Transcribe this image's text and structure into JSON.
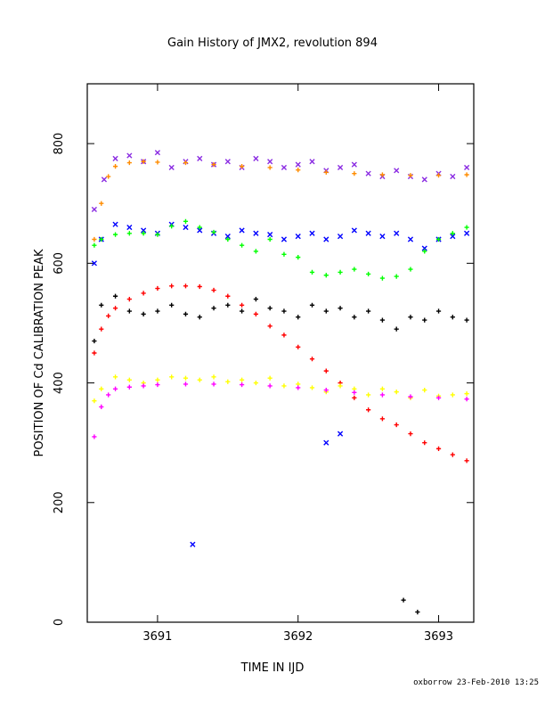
{
  "chart_data": {
    "type": "scatter",
    "title": "Gain History of JMX2, revolution 894",
    "xlabel": "TIME IN IJD",
    "ylabel": "POSITION OF Cd CALIBRATION PEAK",
    "xlim": [
      3690.5,
      3693.25
    ],
    "ylim": [
      0,
      900
    ],
    "x_ticks": [
      3691,
      3692,
      3693
    ],
    "y_ticks": [
      0,
      200,
      400,
      600,
      800
    ],
    "grid": false,
    "footer": "oxborrow 23-Feb-2010 13:25",
    "series": [
      {
        "color": "#8a2be2",
        "marker": "x",
        "x": [
          3690.55,
          3690.62,
          3690.7,
          3690.8,
          3690.9,
          3691.0,
          3691.1,
          3691.2,
          3691.3,
          3691.4,
          3691.5,
          3691.6,
          3691.7,
          3691.8,
          3691.9,
          3692.0,
          3692.1,
          3692.2,
          3692.3,
          3692.4,
          3692.5,
          3692.6,
          3692.7,
          3692.8,
          3692.9,
          3693.0,
          3693.1,
          3693.2
        ],
        "y": [
          690,
          740,
          775,
          780,
          770,
          785,
          760,
          770,
          775,
          765,
          770,
          760,
          775,
          770,
          760,
          765,
          770,
          755,
          760,
          765,
          750,
          745,
          755,
          745,
          740,
          750,
          745,
          760
        ]
      },
      {
        "color": "#ff8c00",
        "marker": "+",
        "x": [
          3690.55,
          3690.6,
          3690.65,
          3690.7,
          3690.8,
          3690.9,
          3691.0,
          3691.2,
          3691.4,
          3691.6,
          3691.8,
          3692.0,
          3692.2,
          3692.4,
          3692.6,
          3692.8,
          3693.0,
          3693.2
        ],
        "y": [
          640,
          700,
          745,
          762,
          768,
          770,
          769,
          768,
          765,
          762,
          760,
          756,
          752,
          750,
          748,
          747,
          747,
          748
        ]
      },
      {
        "color": "#0000ff",
        "marker": "x",
        "x": [
          3690.55,
          3690.6,
          3690.7,
          3690.8,
          3690.9,
          3691.0,
          3691.1,
          3691.2,
          3691.3,
          3691.4,
          3691.5,
          3691.6,
          3691.7,
          3691.8,
          3691.9,
          3692.0,
          3692.1,
          3692.2,
          3692.3,
          3692.4,
          3692.5,
          3692.6,
          3692.7,
          3692.8,
          3692.9,
          3693.0,
          3693.1,
          3693.2,
          3691.25,
          3692.2,
          3692.3
        ],
        "y": [
          600,
          640,
          665,
          660,
          655,
          650,
          665,
          660,
          655,
          650,
          645,
          655,
          650,
          648,
          640,
          645,
          650,
          640,
          645,
          655,
          650,
          645,
          650,
          640,
          625,
          640,
          645,
          650,
          130,
          300,
          315
        ]
      },
      {
        "color": "#00ff00",
        "marker": "+",
        "x": [
          3690.55,
          3690.6,
          3690.7,
          3690.8,
          3690.9,
          3691.0,
          3691.1,
          3691.2,
          3691.3,
          3691.4,
          3691.5,
          3691.6,
          3691.7,
          3691.8,
          3691.9,
          3692.0,
          3692.1,
          3692.2,
          3692.3,
          3692.4,
          3692.5,
          3692.6,
          3692.7,
          3692.8,
          3692.9,
          3693.0,
          3693.1,
          3693.2
        ],
        "y": [
          630,
          640,
          648,
          650,
          650,
          648,
          662,
          670,
          660,
          652,
          640,
          630,
          620,
          640,
          615,
          610,
          585,
          580,
          585,
          590,
          582,
          575,
          578,
          590,
          620,
          640,
          650,
          660
        ]
      },
      {
        "color": "#000000",
        "marker": "+",
        "x": [
          3690.55,
          3690.6,
          3690.7,
          3690.8,
          3690.9,
          3691.0,
          3691.1,
          3691.2,
          3691.3,
          3691.4,
          3691.5,
          3691.6,
          3691.7,
          3691.8,
          3691.9,
          3692.0,
          3692.1,
          3692.2,
          3692.3,
          3692.4,
          3692.5,
          3692.6,
          3692.7,
          3692.8,
          3692.9,
          3693.0,
          3693.1,
          3693.2,
          3692.75,
          3692.85
        ],
        "y": [
          470,
          530,
          545,
          520,
          515,
          520,
          530,
          515,
          510,
          525,
          530,
          520,
          540,
          525,
          520,
          510,
          530,
          520,
          525,
          510,
          520,
          505,
          490,
          510,
          505,
          520,
          510,
          505,
          37,
          17
        ]
      },
      {
        "color": "#ff0000",
        "marker": "+",
        "x": [
          3690.55,
          3690.6,
          3690.65,
          3690.7,
          3690.8,
          3690.9,
          3691.0,
          3691.1,
          3691.2,
          3691.3,
          3691.4,
          3691.5,
          3691.6,
          3691.7,
          3691.8,
          3691.9,
          3692.0,
          3692.1,
          3692.2,
          3692.3,
          3692.4,
          3692.5,
          3692.6,
          3692.7,
          3692.8,
          3692.9,
          3693.0,
          3693.1,
          3693.2
        ],
        "y": [
          450,
          490,
          512,
          525,
          540,
          550,
          558,
          562,
          562,
          561,
          555,
          545,
          530,
          515,
          495,
          480,
          460,
          440,
          420,
          400,
          375,
          355,
          340,
          330,
          315,
          300,
          290,
          280,
          270
        ]
      },
      {
        "color": "#ffff00",
        "marker": "+",
        "x": [
          3690.55,
          3690.6,
          3690.7,
          3690.8,
          3690.9,
          3691.0,
          3691.1,
          3691.2,
          3691.3,
          3691.4,
          3691.5,
          3691.6,
          3691.7,
          3691.8,
          3691.9,
          3692.0,
          3692.1,
          3692.2,
          3692.3,
          3692.4,
          3692.5,
          3692.6,
          3692.7,
          3692.8,
          3692.9,
          3693.0,
          3693.1,
          3693.2
        ],
        "y": [
          370,
          390,
          410,
          405,
          400,
          405,
          410,
          408,
          405,
          410,
          402,
          405,
          400,
          408,
          395,
          398,
          392,
          385,
          395,
          390,
          380,
          390,
          385,
          375,
          388,
          378,
          380,
          382
        ]
      },
      {
        "color": "#ff00ff",
        "marker": "+",
        "x": [
          3690.55,
          3690.6,
          3690.65,
          3690.7,
          3690.8,
          3690.9,
          3691.0,
          3691.2,
          3691.4,
          3691.6,
          3691.8,
          3692.0,
          3692.2,
          3692.4,
          3692.6,
          3692.8,
          3693.0,
          3693.2
        ],
        "y": [
          310,
          360,
          380,
          390,
          393,
          395,
          397,
          398,
          398,
          397,
          395,
          392,
          388,
          384,
          380,
          377,
          375,
          373
        ]
      }
    ]
  }
}
